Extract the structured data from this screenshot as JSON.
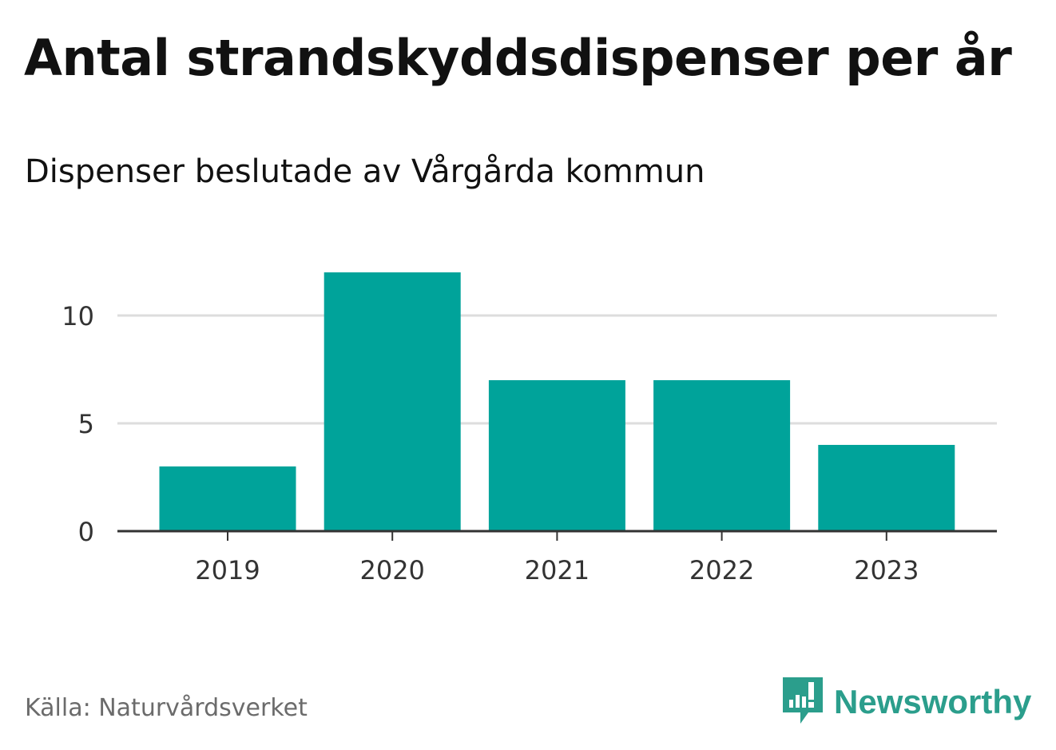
{
  "header": {
    "title": "Antal strandskyddsdispenser per år",
    "subtitle": "Dispenser beslutade av Vårgårda kommun"
  },
  "footer": {
    "source": "Källa: Naturvårdsverket",
    "brand": "Newsworthy"
  },
  "colors": {
    "bar": "#00a39a",
    "grid": "#dddddd",
    "axis": "#333333",
    "tick_text": "#333333",
    "brand": "#2b9e8c"
  },
  "chart_data": {
    "type": "bar",
    "title": "Antal strandskyddsdispenser per år",
    "subtitle": "Dispenser beslutade av Vårgårda kommun",
    "categories": [
      "2019",
      "2020",
      "2021",
      "2022",
      "2023"
    ],
    "values": [
      3,
      12,
      7,
      7,
      4
    ],
    "xlabel": "",
    "ylabel": "",
    "ylim": [
      0,
      12
    ],
    "yticks": [
      0,
      5,
      10
    ],
    "grid": true
  }
}
